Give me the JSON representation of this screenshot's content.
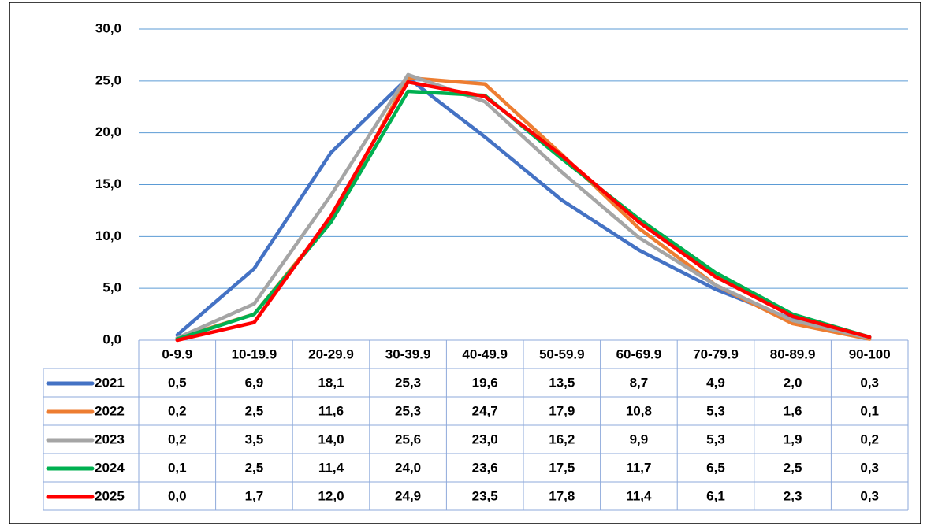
{
  "chart_data": {
    "type": "line",
    "categories": [
      "0-9.9",
      "10-19.9",
      "20-29.9",
      "30-39.9",
      "40-49.9",
      "50-59.9",
      "60-69.9",
      "70-79.9",
      "80-89.9",
      "90-100"
    ],
    "series": [
      {
        "name": "2021",
        "color": "#4472c4",
        "values": [
          0.5,
          6.9,
          18.1,
          25.3,
          19.6,
          13.5,
          8.7,
          4.9,
          2.0,
          0.3
        ],
        "value_labels": [
          "0,5",
          "6,9",
          "18,1",
          "25,3",
          "19,6",
          "13,5",
          "8,7",
          "4,9",
          "2,0",
          "0,3"
        ]
      },
      {
        "name": "2022",
        "color": "#ed7d31",
        "values": [
          0.2,
          2.5,
          11.6,
          25.3,
          24.7,
          17.9,
          10.8,
          5.3,
          1.6,
          0.1
        ],
        "value_labels": [
          "0,2",
          "2,5",
          "11,6",
          "25,3",
          "24,7",
          "17,9",
          "10,8",
          "5,3",
          "1,6",
          "0,1"
        ]
      },
      {
        "name": "2023",
        "color": "#a5a5a5",
        "values": [
          0.2,
          3.5,
          14.0,
          25.6,
          23.0,
          16.2,
          9.9,
          5.3,
          1.9,
          0.2
        ],
        "value_labels": [
          "0,2",
          "3,5",
          "14,0",
          "25,6",
          "23,0",
          "16,2",
          "9,9",
          "5,3",
          "1,9",
          "0,2"
        ]
      },
      {
        "name": "2024",
        "color": "#00b050",
        "values": [
          0.1,
          2.5,
          11.4,
          24.0,
          23.6,
          17.5,
          11.7,
          6.5,
          2.5,
          0.3
        ],
        "value_labels": [
          "0,1",
          "2,5",
          "11,4",
          "24,0",
          "23,6",
          "17,5",
          "11,7",
          "6,5",
          "2,5",
          "0,3"
        ]
      },
      {
        "name": "2025",
        "color": "#ff0000",
        "values": [
          0.0,
          1.7,
          12.0,
          24.9,
          23.5,
          17.8,
          11.4,
          6.1,
          2.3,
          0.3
        ],
        "value_labels": [
          "0,0",
          "1,7",
          "12,0",
          "24,9",
          "23,5",
          "17,8",
          "11,4",
          "6,1",
          "2,3",
          "0,3"
        ]
      }
    ],
    "ylim": [
      0,
      30
    ],
    "yticks": [
      {
        "value": 0,
        "label": "0,0"
      },
      {
        "value": 5,
        "label": "5,0"
      },
      {
        "value": 10,
        "label": "10,0"
      },
      {
        "value": 15,
        "label": "15,0"
      },
      {
        "value": 20,
        "label": "20,0"
      },
      {
        "value": 25,
        "label": "25,0"
      },
      {
        "value": 30,
        "label": "30,0"
      }
    ],
    "grid": true
  }
}
